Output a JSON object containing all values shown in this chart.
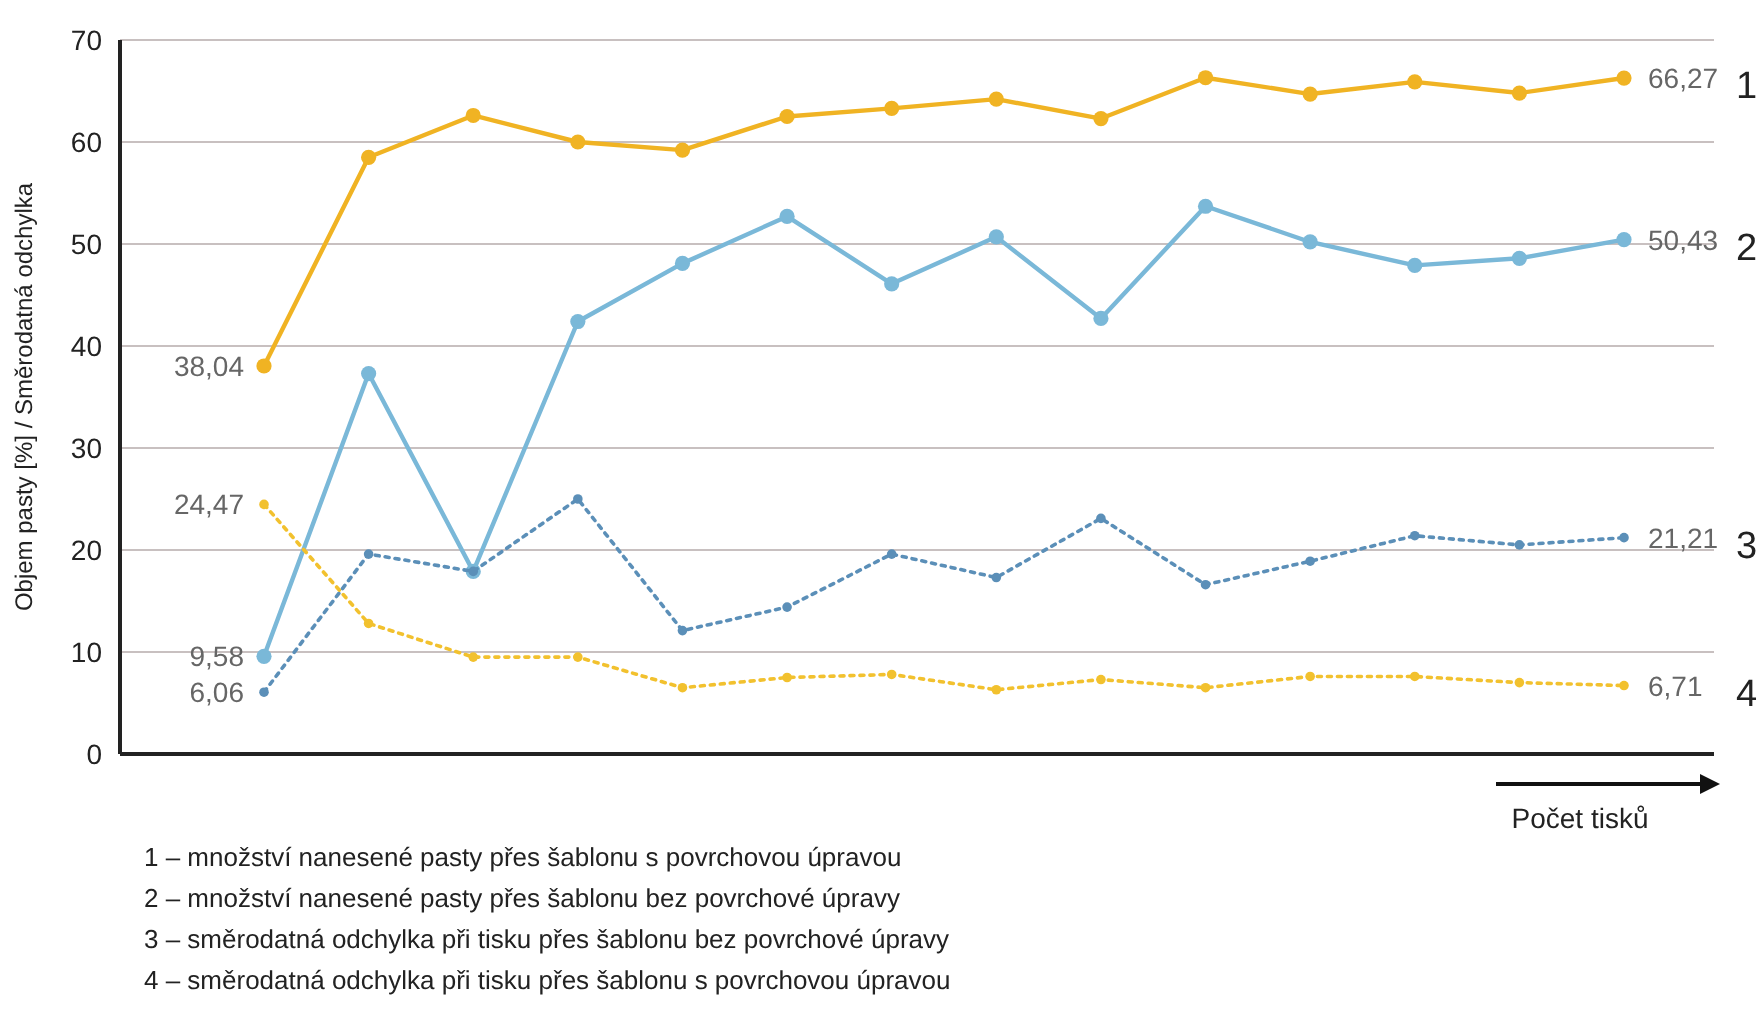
{
  "chart_data": {
    "type": "line",
    "ylabel": "Objem pasty [%] / Směrodatná odchylka",
    "xlabel": "Počet tisků",
    "categories": [
      null,
      null,
      null,
      null,
      null,
      null,
      null,
      null,
      null,
      null,
      null,
      null,
      null,
      null
    ],
    "ylim": [
      0,
      70
    ],
    "yticks": [
      0,
      10,
      20,
      30,
      40,
      50,
      60,
      70
    ],
    "grid": "y",
    "tick_labels": "y",
    "marker": "circle",
    "series": [
      {
        "name": "1",
        "color": "#f0b323",
        "line_style": "solid",
        "values": [
          38.04,
          58.5,
          62.6,
          60.0,
          59.2,
          62.5,
          63.3,
          64.2,
          62.3,
          66.3,
          64.7,
          65.9,
          64.8,
          66.27
        ],
        "value_labels": [
          "38,04",
          null,
          null,
          null,
          null,
          null,
          null,
          null,
          null,
          null,
          null,
          null,
          null,
          "66,27"
        ]
      },
      {
        "name": "2",
        "color": "#7ab8d8",
        "line_style": "solid",
        "values": [
          9.58,
          37.3,
          17.9,
          42.4,
          48.1,
          52.7,
          46.1,
          50.7,
          42.7,
          53.7,
          50.2,
          47.9,
          48.6,
          50.43
        ],
        "value_labels": [
          "9,58",
          null,
          null,
          null,
          null,
          null,
          null,
          null,
          null,
          null,
          null,
          null,
          null,
          "50,43"
        ]
      },
      {
        "name": "3",
        "color": "#5b8fb8",
        "line_style": "dotted",
        "values": [
          6.06,
          19.6,
          17.9,
          25.0,
          12.1,
          14.4,
          19.6,
          17.3,
          23.1,
          16.6,
          18.9,
          21.4,
          20.5,
          21.21
        ],
        "value_labels": [
          "6,06",
          null,
          null,
          null,
          null,
          null,
          null,
          null,
          null,
          null,
          null,
          null,
          null,
          "21,21"
        ]
      },
      {
        "name": "4",
        "color": "#f2c12e",
        "line_style": "dotted",
        "values": [
          24.47,
          12.8,
          9.5,
          9.5,
          6.5,
          7.5,
          7.8,
          6.3,
          7.3,
          6.5,
          7.6,
          7.6,
          7.0,
          6.71
        ],
        "value_labels": [
          "24,47",
          null,
          null,
          null,
          null,
          null,
          null,
          null,
          null,
          null,
          null,
          null,
          null,
          "6,71"
        ]
      }
    ],
    "annotations": [
      "1 – množství nanesené pasty přes šablonu s povrchovou úpravou",
      "2 – množství nanesené pasty přes šablonu bez povrchové úpravy",
      "3 – směrodatná odchylka při tisku přes šablonu bez povrchové úpravy",
      "4 – směrodatná odchylka při tisku přes šablonu s povrchovou úpravou"
    ]
  }
}
